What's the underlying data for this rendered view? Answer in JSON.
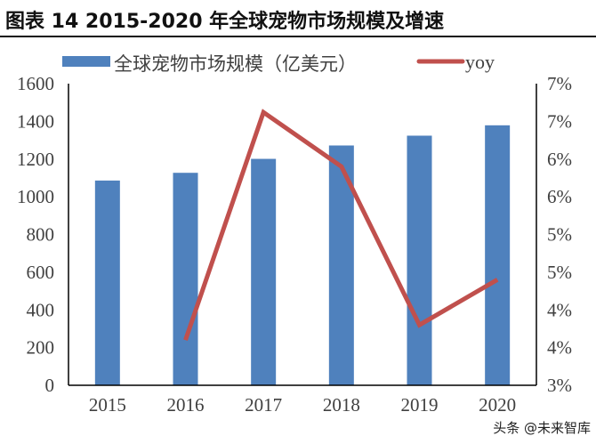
{
  "title": "图表 14 2015-2020 年全球宠物市场规模及增速",
  "watermark": "头条 @未来智库",
  "chart_data": {
    "type": "bar+line",
    "categories": [
      "2015",
      "2016",
      "2017",
      "2018",
      "2019",
      "2020"
    ],
    "series": [
      {
        "name": "全球宠物市场规模（亿美元）",
        "type": "bar",
        "axis": "left",
        "color": "#4F81BD",
        "values": [
          1086,
          1127,
          1201,
          1272,
          1324,
          1379
        ]
      },
      {
        "name": "yoy",
        "type": "line",
        "axis": "right",
        "color": "#C0504D",
        "values": [
          null,
          3.6,
          6.62,
          5.9,
          3.8,
          4.4
        ]
      }
    ],
    "left_axis": {
      "min": 0,
      "max": 1600,
      "step": 200,
      "tick_labels": [
        "0",
        "200",
        "400",
        "600",
        "800",
        "1000",
        "1200",
        "1400",
        "1600"
      ]
    },
    "right_axis": {
      "min": 3,
      "max": 7,
      "step": 0.5,
      "unit": "%",
      "tick_labels": [
        "3%",
        "4%",
        "4%",
        "5%",
        "5%",
        "6%",
        "6%",
        "7%",
        "7%"
      ]
    },
    "legend_position": "top",
    "grid": false
  }
}
